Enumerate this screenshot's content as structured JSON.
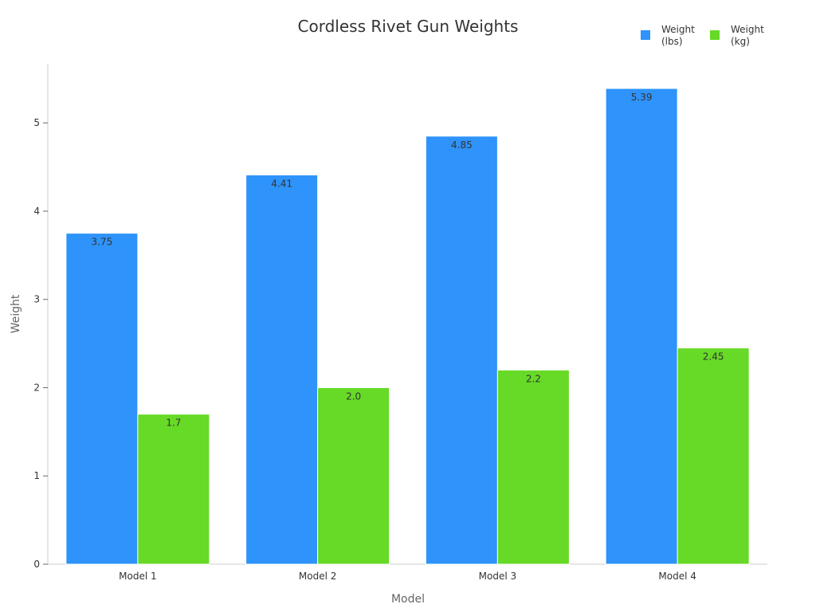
{
  "chart_data": {
    "type": "bar",
    "title": "Cordless Rivet Gun Weights",
    "xlabel": "Model",
    "ylabel": "Weight",
    "categories": [
      "Model 1",
      "Model 2",
      "Model 3",
      "Model 4"
    ],
    "series": [
      {
        "name": "Weight (lbs)",
        "legend_lines": [
          "Weight",
          "(lbs)"
        ],
        "color": "#2E93FA",
        "values": [
          3.75,
          4.41,
          4.85,
          5.39
        ],
        "labels": [
          "3.75",
          "4.41",
          "4.85",
          "5.39"
        ]
      },
      {
        "name": "Weight (kg)",
        "legend_lines": [
          "Weight",
          "(kg)"
        ],
        "color": "#66DA26",
        "values": [
          1.7,
          2.0,
          2.2,
          2.45
        ],
        "labels": [
          "1.7",
          "2.0",
          "2.2",
          "2.45"
        ]
      }
    ],
    "yticks": [
      "0",
      "1",
      "2",
      "3",
      "4",
      "5"
    ],
    "ylim": [
      0,
      5.67
    ],
    "grid": false,
    "legend_position": "top-right"
  }
}
